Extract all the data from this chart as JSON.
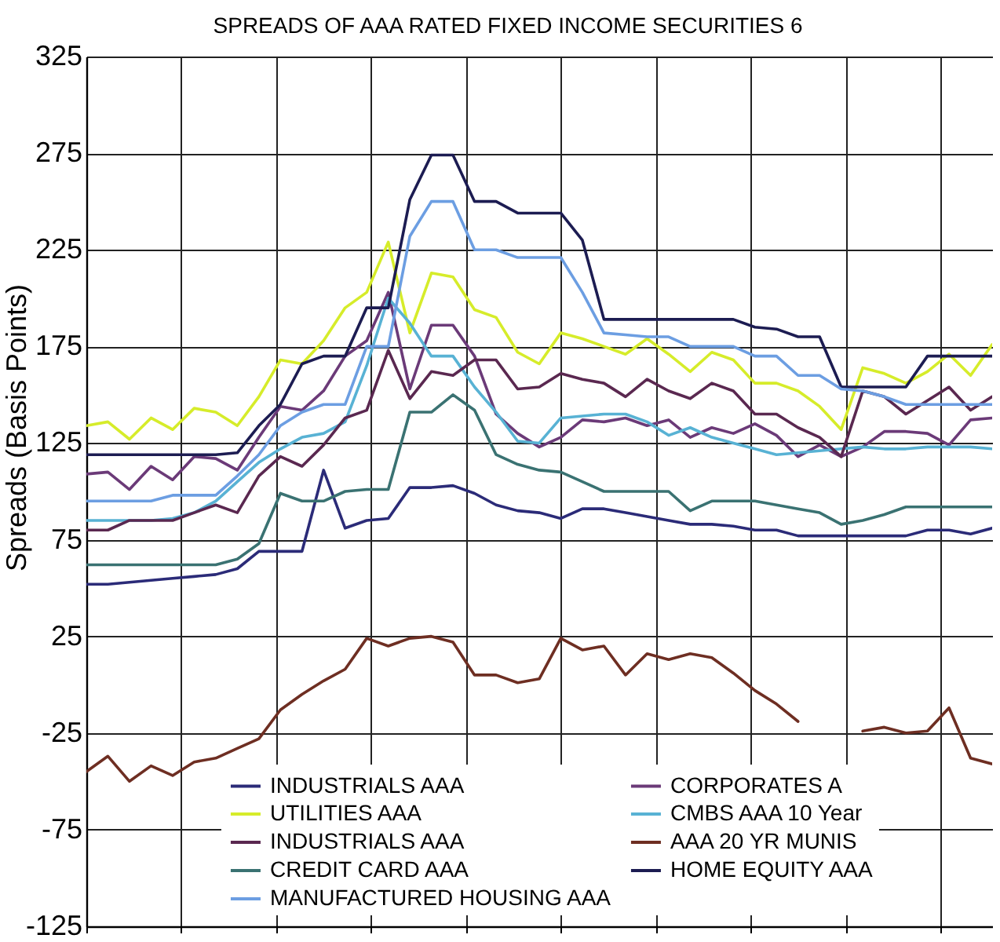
{
  "chart_data": {
    "type": "line",
    "title": "SPREADS OF AAA RATED FIXED INCOME SECURITIES 6",
    "ylabel": "Spreads (Basis Points)",
    "categories": [
      null,
      null,
      null,
      null,
      null,
      null,
      null,
      null,
      null,
      null,
      null,
      null,
      null,
      null,
      null,
      null,
      null,
      null,
      null,
      null,
      null,
      null,
      null,
      null,
      null,
      null,
      null,
      null,
      null,
      null,
      null,
      null,
      null,
      null,
      null,
      null,
      null,
      null,
      null,
      null,
      null,
      null,
      null
    ],
    "ylim": [
      -125,
      325
    ],
    "yticks": [
      -125,
      -75,
      -25,
      25,
      75,
      125,
      175,
      225,
      275,
      325
    ],
    "grid": true,
    "legend": "bottom",
    "series": [
      {
        "name": "INDUSTRIALS AAA",
        "color": "#2b2b78",
        "values": [
          52,
          52,
          53,
          54,
          55,
          56,
          57,
          60,
          69,
          69,
          69,
          111,
          81,
          85,
          86,
          102,
          102,
          103,
          99,
          93,
          90,
          89,
          86,
          91,
          91,
          89,
          87,
          85,
          83,
          83,
          82,
          80,
          80,
          77,
          77,
          77,
          77,
          77,
          77,
          80,
          80,
          78,
          81
        ]
      },
      {
        "name": "CORPORATES A",
        "color": "#6b3a78",
        "values": [
          109,
          110,
          101,
          113,
          106,
          118,
          117,
          111,
          128,
          144,
          142,
          152,
          170,
          178,
          203,
          153,
          186,
          186,
          170,
          140,
          130,
          123,
          128,
          137,
          136,
          138,
          134,
          137,
          128,
          133,
          130,
          135,
          129,
          118,
          124,
          118,
          123,
          131,
          131,
          130,
          124,
          137,
          138
        ]
      },
      {
        "name": "UTILITIES AAA",
        "color": "#d6ec2a",
        "values": [
          134,
          136,
          127,
          138,
          132,
          143,
          141,
          134,
          149,
          168,
          166,
          178,
          195,
          203,
          229,
          182,
          213,
          211,
          194,
          190,
          172,
          166,
          182,
          179,
          175,
          171,
          179,
          171,
          162,
          172,
          168,
          156,
          156,
          152,
          144,
          132,
          164,
          161,
          156,
          162,
          171,
          160,
          176
        ]
      },
      {
        "name": "CMBS AAA 10 Year",
        "color": "#58b2d4",
        "values": [
          85,
          85,
          85,
          85,
          86,
          89,
          95,
          105,
          115,
          122,
          128,
          130,
          136,
          165,
          200,
          187,
          170,
          170,
          154,
          141,
          126,
          125,
          138,
          139,
          140,
          140,
          136,
          129,
          133,
          128,
          125,
          122,
          119,
          120,
          121,
          122,
          123,
          122,
          122,
          123,
          123,
          123,
          122
        ]
      },
      {
        "name": "INDUSTRIALS AAA",
        "color": "#5a2850",
        "values": [
          80,
          80,
          85,
          85,
          85,
          89,
          93,
          89,
          108,
          118,
          113,
          124,
          138,
          142,
          173,
          148,
          162,
          160,
          168,
          168,
          153,
          154,
          161,
          158,
          156,
          149,
          158,
          152,
          148,
          156,
          152,
          140,
          140,
          133,
          128,
          118,
          152,
          149,
          140,
          147,
          154,
          142,
          149
        ]
      },
      {
        "name": "AAA 20 YR MUNIS",
        "color": "#6e2e22",
        "values": [
          -45,
          -37,
          -50,
          -42,
          -47,
          -40,
          -38,
          -33,
          -28,
          -13,
          -5,
          2,
          8,
          24,
          20,
          24,
          25,
          22,
          5,
          5,
          1,
          3,
          24,
          18,
          20,
          5,
          16,
          13,
          16,
          14,
          6,
          -3,
          -10,
          -19,
          null,
          null,
          -24,
          -22,
          -25,
          -24,
          -12,
          -38,
          -41
        ]
      },
      {
        "name": "CREDIT CARD AAA",
        "color": "#3a7272",
        "values": [
          62,
          62,
          62,
          62,
          62,
          62,
          62,
          65,
          73,
          99,
          95,
          95,
          100,
          101,
          101,
          141,
          141,
          150,
          142,
          119,
          114,
          111,
          110,
          105,
          100,
          100,
          100,
          100,
          90,
          95,
          95,
          95,
          93,
          91,
          89,
          83,
          85,
          88,
          92,
          92,
          92,
          92,
          92
        ]
      },
      {
        "name": "HOME EQUITY AAA",
        "color": "#1c1c52",
        "values": [
          119,
          119,
          119,
          119,
          119,
          119,
          119,
          120,
          134,
          145,
          166,
          170,
          170,
          195,
          195,
          251,
          274,
          274,
          250,
          250,
          244,
          244,
          244,
          230,
          189,
          189,
          189,
          189,
          189,
          189,
          189,
          185,
          184,
          180,
          180,
          154,
          154,
          154,
          154,
          170,
          170,
          170,
          170
        ]
      },
      {
        "name": "MANUFACTURED HOUSING AAA",
        "color": "#6c9ee2",
        "values": [
          95,
          95,
          95,
          95,
          98,
          98,
          98,
          108,
          119,
          134,
          141,
          145,
          145,
          175,
          175,
          232,
          250,
          250,
          225,
          225,
          221,
          221,
          221,
          203,
          182,
          181,
          180,
          180,
          175,
          175,
          175,
          170,
          170,
          160,
          160,
          153,
          152,
          149,
          145,
          145,
          145,
          145,
          145
        ]
      }
    ]
  }
}
